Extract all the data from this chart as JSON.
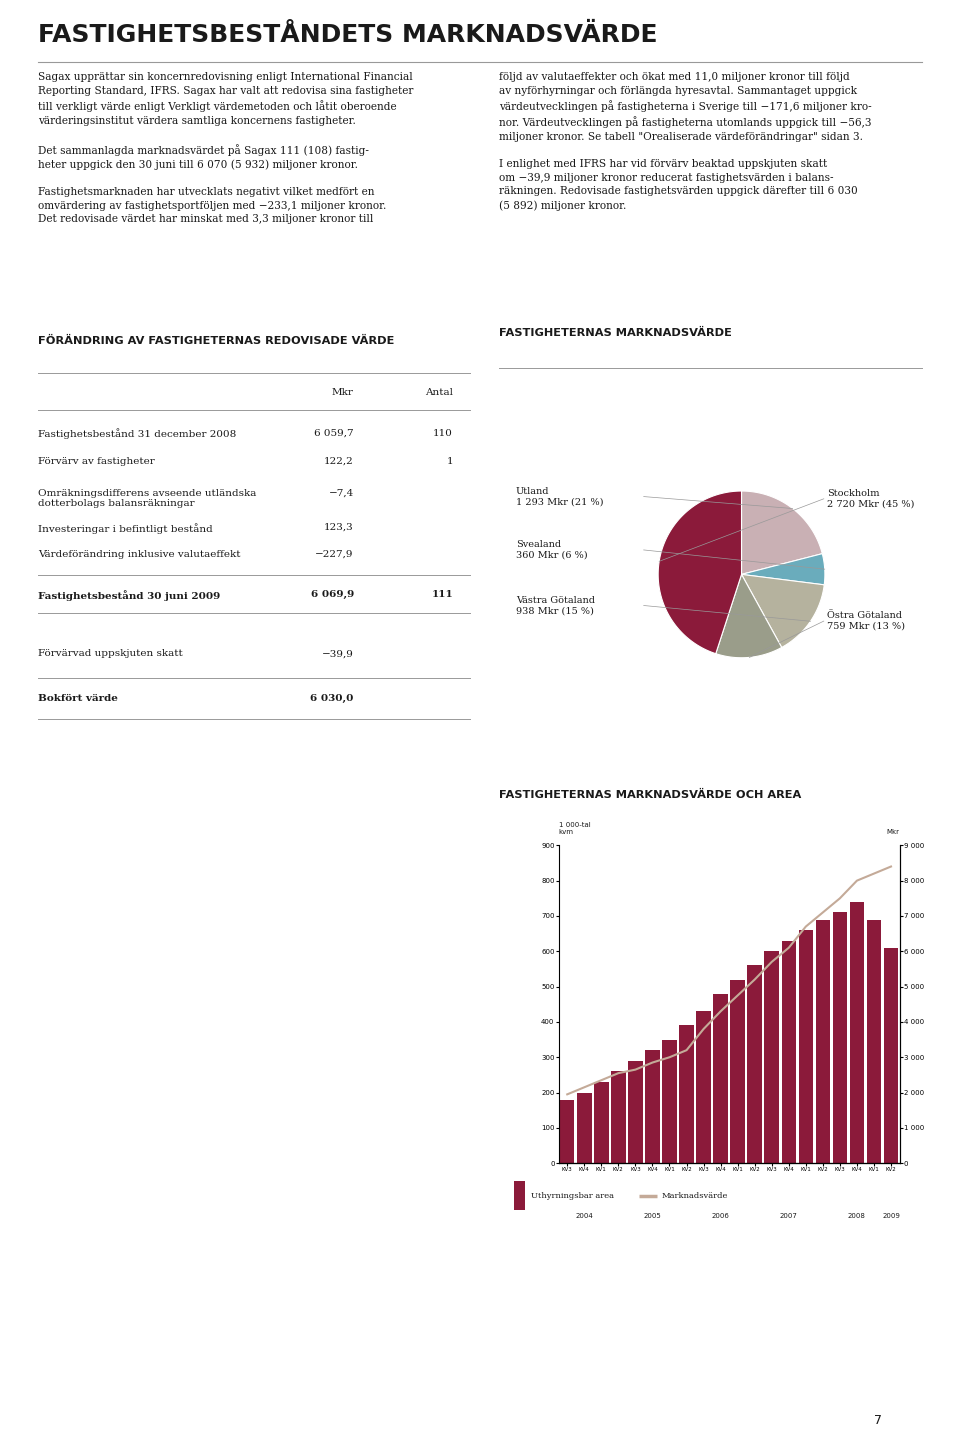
{
  "title": "FASTIGHETSBESTÅNDETS MARKNADSVÄRDE",
  "page_num": "7",
  "left_text": "Sagax upprättar sin koncernredovisning enligt International Financial\nReporting Standard, IFRS. Sagax har valt att redovisa sina fastigheter\ntill verkligt värde enligt Verkligt värdemetoden och låtit oberoende\nvärderingsinstitut värdera samtliga koncernens fastigheter.\n\nDet sammanlagda marknadsvärdet på Sagax 111 (108) fastig-\nheter uppgick den 30 juni till 6 070 (5 932) miljoner kronor.\n\nFastighetsmarknaden har utvecklats negativt vilket medfört en\nomvärdering av fastighetsportföljen med −233,1 miljoner kronor.\nDet redovisade värdet har minskat med 3,3 miljoner kronor till",
  "right_text": "följd av valutaeffekter och ökat med 11,0 miljoner kronor till följd\nav nyförhyrningar och förlängda hyresavtal. Sammantaget uppgick\nvärdeutvecklingen på fastigheterna i Sverige till −171,6 miljoner kro-\nnor. Värdeutvecklingen på fastigheterna utomlands uppgick till −56,3\nmiljoner kronor. Se tabell \"Orealiserade värdeförändringar\" sidan 3.\n\nI enlighet med IFRS har vid förvärv beaktad uppskjuten skatt\nom −39,9 miljoner kronor reducerat fastighetsvärden i balans-\nräkningen. Redovisade fastighetsvärden uppgick därefter till 6 030\n(5 892) miljoner kronor.",
  "table_title": "FÖRÄNDRING AV FASTIGHETERNAS REDOVISADE VÄRDE",
  "pie_title": "FASTIGHETERNAS MARKNADSVÄRDE",
  "bar_chart_title": "FASTIGHETERNAS MARKNADSVÄRDE OCH AREA",
  "pie_sizes": [
    21,
    6,
    15,
    13,
    45
  ],
  "pie_colors": [
    "#c9b0b4",
    "#6aacbc",
    "#b5b29e",
    "#9a9d8a",
    "#8b1a3a"
  ],
  "bar_mkr": [
    1800,
    2000,
    2300,
    2600,
    2900,
    3200,
    3500,
    3900,
    4300,
    4800,
    5200,
    5600,
    6000,
    6300,
    6600,
    6900,
    7100,
    7400,
    6900,
    6100
  ],
  "bar_area": [
    195,
    215,
    235,
    255,
    265,
    285,
    300,
    320,
    380,
    430,
    475,
    520,
    570,
    610,
    670,
    710,
    750,
    800,
    820,
    840
  ],
  "bar_quarters": [
    "KV3",
    "KV4",
    "KV1",
    "KV2",
    "KV3",
    "KV4",
    "KV1",
    "KV2",
    "KV3",
    "KV4",
    "KV1",
    "KV2",
    "KV3",
    "KV4",
    "KV1",
    "KV2",
    "KV3",
    "KV4",
    "KV1",
    "KV2"
  ],
  "bar_year_labels": [
    "2004",
    "2005",
    "2006",
    "2007",
    "2008",
    "2009"
  ],
  "bar_year_xpos": [
    1,
    5,
    9,
    13,
    17,
    19
  ],
  "bar_color": "#8b1a3a",
  "line_color": "#c4aa98",
  "bg": "#ffffff",
  "fg": "#1a1a1a",
  "sep_color": "#999999"
}
